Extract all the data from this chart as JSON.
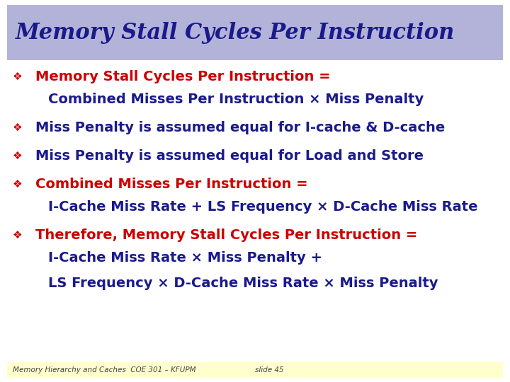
{
  "title": "Memory Stall Cycles Per Instruction",
  "title_color": "#1a1a8c",
  "title_bg_color": "#b3b3d9",
  "footer_bg_color": "#ffffcc",
  "footer_text1": "Memory Hierarchy and Caches  COE 301 – KFUPM",
  "footer_text2": "slide 45",
  "bg_color": "#ffffff",
  "bullets": [
    {
      "text": "Memory Stall Cycles Per Instruction =",
      "color": "#cc0000",
      "indent": 0,
      "diamond": true
    },
    {
      "text": "Combined Misses Per Instruction × Miss Penalty",
      "color": "#1a1a8c",
      "indent": 1,
      "diamond": false
    },
    {
      "text": "Miss Penalty is assumed equal for I-cache & D-cache",
      "color": "#1a1a8c",
      "indent": 0,
      "diamond": true
    },
    {
      "text": "Miss Penalty is assumed equal for Load and Store",
      "color": "#1a1a8c",
      "indent": 0,
      "diamond": true
    },
    {
      "text": "Combined Misses Per Instruction =",
      "color": "#cc0000",
      "indent": 0,
      "diamond": true
    },
    {
      "text": "I-Cache Miss Rate + LS Frequency × D-Cache Miss Rate",
      "color": "#1a1a8c",
      "indent": 1,
      "diamond": false
    },
    {
      "text": "Therefore, Memory Stall Cycles Per Instruction =",
      "color": "#cc0000",
      "indent": 0,
      "diamond": true
    },
    {
      "text": "I-Cache Miss Rate × Miss Penalty +",
      "color": "#1a1a8c",
      "indent": 1,
      "diamond": false
    },
    {
      "text": "LS Frequency × D-Cache Miss Rate × Miss Penalty",
      "color": "#1a1a8c",
      "indent": 1,
      "diamond": false
    }
  ],
  "title_font_size": 22,
  "bullet_font_size": 14,
  "footer_font_size": 7.5
}
